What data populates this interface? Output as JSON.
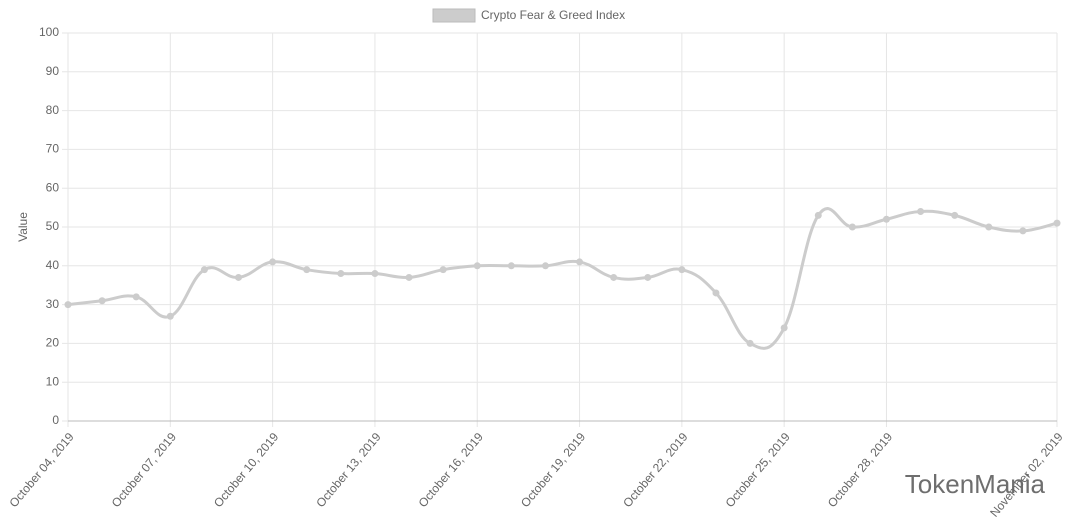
{
  "chart_data": {
    "type": "line",
    "y_label": "Value",
    "watermark": "TokenMania",
    "categories": [
      "October 04, 2019",
      null,
      null,
      "October 07, 2019",
      null,
      null,
      "October 10, 2019",
      null,
      null,
      "October 13, 2019",
      null,
      null,
      "October 16, 2019",
      null,
      null,
      "October 19, 2019",
      null,
      null,
      "October 22, 2019",
      null,
      null,
      "October 25, 2019",
      null,
      null,
      "October 28, 2019",
      null,
      null,
      null,
      null,
      "November 02, 2019"
    ],
    "series": [
      {
        "name": "Crypto Fear & Greed Index",
        "color": "#cccccc",
        "values": [
          30,
          31,
          32,
          27,
          39,
          37,
          41,
          39,
          38,
          38,
          37,
          39,
          40,
          40,
          40,
          41,
          37,
          37,
          39,
          33,
          20,
          24,
          53,
          50,
          52,
          54,
          53,
          50,
          49,
          51
        ]
      }
    ],
    "ylim": [
      0,
      100
    ],
    "yticks": [
      0,
      10,
      20,
      30,
      40,
      50,
      60,
      70,
      80,
      90,
      100
    ],
    "grid": true,
    "legend": "top"
  }
}
